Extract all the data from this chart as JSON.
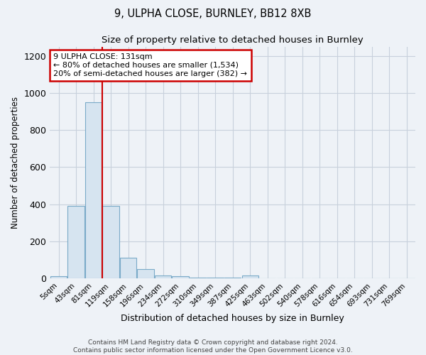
{
  "title1": "9, ULPHA CLOSE, BURNLEY, BB12 8XB",
  "title2": "Size of property relative to detached houses in Burnley",
  "xlabel": "Distribution of detached houses by size in Burnley",
  "ylabel": "Number of detached properties",
  "categories": [
    "5sqm",
    "43sqm",
    "81sqm",
    "119sqm",
    "158sqm",
    "196sqm",
    "234sqm",
    "272sqm",
    "310sqm",
    "349sqm",
    "387sqm",
    "425sqm",
    "463sqm",
    "502sqm",
    "540sqm",
    "578sqm",
    "616sqm",
    "654sqm",
    "693sqm",
    "731sqm",
    "769sqm"
  ],
  "values": [
    10,
    390,
    950,
    390,
    110,
    50,
    15,
    10,
    5,
    3,
    2,
    15,
    0,
    0,
    0,
    0,
    0,
    0,
    0,
    0,
    0
  ],
  "bar_color": "#d6e4f0",
  "bar_edgecolor": "#7aaac8",
  "red_line_x": 2.5,
  "annotation_text": "9 ULPHA CLOSE: 131sqm\n← 80% of detached houses are smaller (1,534)\n20% of semi-detached houses are larger (382) →",
  "annotation_box_color": "#ffffff",
  "annotation_border_color": "#cc0000",
  "ylim": [
    0,
    1250
  ],
  "yticks": [
    0,
    200,
    400,
    600,
    800,
    1000,
    1200
  ],
  "footer1": "Contains HM Land Registry data © Crown copyright and database right 2024.",
  "footer2": "Contains public sector information licensed under the Open Government Licence v3.0.",
  "bg_color": "#eef2f7",
  "plot_bg_color": "#eef2f7",
  "grid_color": "#c8d0dc"
}
